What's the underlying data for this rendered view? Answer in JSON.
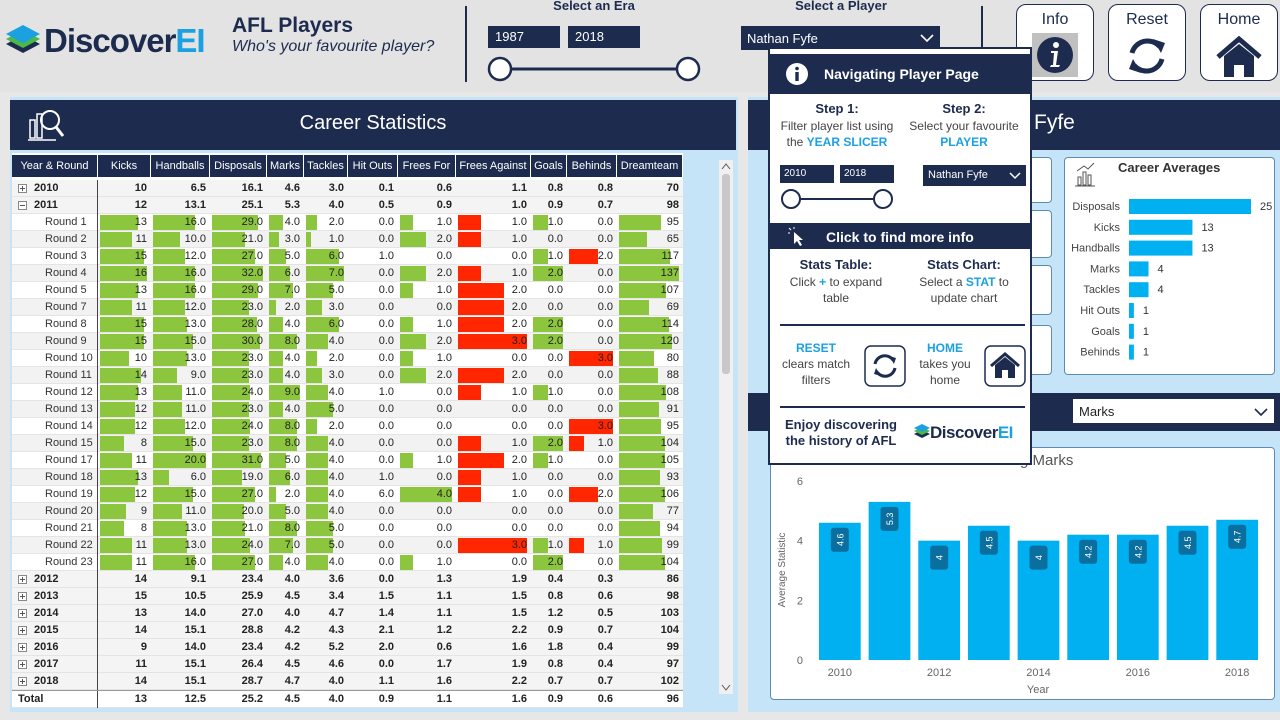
{
  "header": {
    "logo": {
      "text": "Discover",
      "accent": "EI"
    },
    "title": "AFL Players",
    "subtitle": "Who's your favourite player?",
    "era_label": "Select an Era",
    "era_start": "1987",
    "era_end": "2018",
    "player_label": "Select a Player",
    "player": "Nathan Fyfe",
    "buttons": [
      "Info",
      "Reset",
      "Home"
    ]
  },
  "table": {
    "title": "Career Statistics",
    "columns": [
      "Year & Round",
      "Kicks",
      "Handballs",
      "Disposals",
      "Marks",
      "Tackles",
      "Hit Outs",
      "Frees For",
      "Frees Against",
      "Goals",
      "Behinds",
      "Dreamteam"
    ],
    "bar_colors": [
      null,
      "#8cc63e",
      "#8cc63e",
      "#8cc63e",
      "#8cc63e",
      "#8cc63e",
      null,
      "#8cc63e",
      "#ff2600",
      "#8cc63e",
      "#ff2600",
      "#8cc63e"
    ],
    "years": [
      {
        "label": "2010",
        "values": [
          "10",
          "6.5",
          "16.1",
          "4.6",
          "3.0",
          "0.1",
          "0.6",
          "1.1",
          "0.8",
          "0.8",
          "70"
        ]
      },
      {
        "label": "2011",
        "values": [
          "12",
          "13.1",
          "25.1",
          "5.3",
          "4.0",
          "0.5",
          "0.9",
          "1.0",
          "0.9",
          "0.7",
          "98"
        ],
        "rounds": [
          {
            "label": "Round 1",
            "values": [
              "13",
              "16.0",
              "29.0",
              "4.0",
              "2.0",
              "0.0",
              "1.0",
              "1.0",
              "1.0",
              "0.0",
              "95"
            ]
          },
          {
            "label": "Round 2",
            "values": [
              "11",
              "10.0",
              "21.0",
              "3.0",
              "1.0",
              "0.0",
              "2.0",
              "1.0",
              "0.0",
              "0.0",
              "65"
            ]
          },
          {
            "label": "Round 3",
            "values": [
              "15",
              "12.0",
              "27.0",
              "5.0",
              "6.0",
              "1.0",
              "0.0",
              "0.0",
              "1.0",
              "2.0",
              "117"
            ]
          },
          {
            "label": "Round 4",
            "values": [
              "16",
              "16.0",
              "32.0",
              "6.0",
              "7.0",
              "0.0",
              "2.0",
              "1.0",
              "2.0",
              "0.0",
              "137"
            ]
          },
          {
            "label": "Round 5",
            "values": [
              "13",
              "16.0",
              "29.0",
              "7.0",
              "5.0",
              "0.0",
              "1.0",
              "2.0",
              "0.0",
              "0.0",
              "107"
            ]
          },
          {
            "label": "Round 7",
            "values": [
              "11",
              "12.0",
              "23.0",
              "2.0",
              "3.0",
              "0.0",
              "0.0",
              "2.0",
              "0.0",
              "0.0",
              "69"
            ]
          },
          {
            "label": "Round 8",
            "values": [
              "15",
              "13.0",
              "28.0",
              "4.0",
              "6.0",
              "0.0",
              "1.0",
              "2.0",
              "2.0",
              "0.0",
              "114"
            ]
          },
          {
            "label": "Round 9",
            "values": [
              "15",
              "15.0",
              "30.0",
              "8.0",
              "4.0",
              "0.0",
              "2.0",
              "3.0",
              "2.0",
              "0.0",
              "120"
            ]
          },
          {
            "label": "Round 10",
            "values": [
              "10",
              "13.0",
              "23.0",
              "4.0",
              "2.0",
              "0.0",
              "1.0",
              "0.0",
              "0.0",
              "3.0",
              "80"
            ]
          },
          {
            "label": "Round 11",
            "values": [
              "14",
              "9.0",
              "23.0",
              "4.0",
              "3.0",
              "0.0",
              "2.0",
              "2.0",
              "0.0",
              "0.0",
              "88"
            ]
          },
          {
            "label": "Round 12",
            "values": [
              "13",
              "11.0",
              "24.0",
              "9.0",
              "4.0",
              "1.0",
              "0.0",
              "1.0",
              "1.0",
              "0.0",
              "108"
            ]
          },
          {
            "label": "Round 13",
            "values": [
              "12",
              "11.0",
              "23.0",
              "4.0",
              "5.0",
              "0.0",
              "0.0",
              "0.0",
              "0.0",
              "0.0",
              "91"
            ]
          },
          {
            "label": "Round 14",
            "values": [
              "12",
              "12.0",
              "24.0",
              "8.0",
              "2.0",
              "0.0",
              "0.0",
              "0.0",
              "0.0",
              "3.0",
              "95"
            ]
          },
          {
            "label": "Round 15",
            "values": [
              "8",
              "15.0",
              "23.0",
              "8.0",
              "4.0",
              "0.0",
              "0.0",
              "1.0",
              "2.0",
              "1.0",
              "104"
            ]
          },
          {
            "label": "Round 17",
            "values": [
              "11",
              "20.0",
              "31.0",
              "5.0",
              "4.0",
              "0.0",
              "1.0",
              "2.0",
              "1.0",
              "0.0",
              "105"
            ]
          },
          {
            "label": "Round 18",
            "values": [
              "13",
              "6.0",
              "19.0",
              "6.0",
              "4.0",
              "1.0",
              "0.0",
              "1.0",
              "0.0",
              "0.0",
              "93"
            ]
          },
          {
            "label": "Round 19",
            "values": [
              "12",
              "15.0",
              "27.0",
              "2.0",
              "4.0",
              "6.0",
              "4.0",
              "1.0",
              "0.0",
              "2.0",
              "106"
            ]
          },
          {
            "label": "Round 20",
            "values": [
              "9",
              "11.0",
              "20.0",
              "5.0",
              "4.0",
              "0.0",
              "0.0",
              "0.0",
              "0.0",
              "0.0",
              "77"
            ]
          },
          {
            "label": "Round 21",
            "values": [
              "8",
              "13.0",
              "21.0",
              "8.0",
              "5.0",
              "0.0",
              "0.0",
              "0.0",
              "0.0",
              "0.0",
              "94"
            ]
          },
          {
            "label": "Round 22",
            "values": [
              "11",
              "13.0",
              "24.0",
              "7.0",
              "5.0",
              "0.0",
              "0.0",
              "3.0",
              "1.0",
              "1.0",
              "99"
            ]
          },
          {
            "label": "Round 23",
            "values": [
              "11",
              "16.0",
              "27.0",
              "4.0",
              "4.0",
              "0.0",
              "1.0",
              "0.0",
              "2.0",
              "0.0",
              "104"
            ]
          }
        ]
      },
      {
        "label": "2012",
        "values": [
          "14",
          "9.1",
          "23.4",
          "4.0",
          "3.6",
          "0.0",
          "1.3",
          "1.9",
          "0.4",
          "0.3",
          "86"
        ]
      },
      {
        "label": "2013",
        "values": [
          "15",
          "10.5",
          "25.9",
          "4.5",
          "3.4",
          "1.5",
          "1.1",
          "1.5",
          "0.8",
          "0.6",
          "98"
        ]
      },
      {
        "label": "2014",
        "values": [
          "13",
          "14.0",
          "27.0",
          "4.0",
          "4.7",
          "1.4",
          "1.1",
          "1.5",
          "1.2",
          "0.5",
          "103"
        ]
      },
      {
        "label": "2015",
        "values": [
          "14",
          "15.1",
          "28.8",
          "4.2",
          "4.3",
          "2.1",
          "1.2",
          "2.2",
          "0.9",
          "0.7",
          "104"
        ]
      },
      {
        "label": "2016",
        "values": [
          "9",
          "14.0",
          "23.4",
          "4.2",
          "5.2",
          "2.0",
          "0.6",
          "1.6",
          "1.8",
          "0.4",
          "99"
        ]
      },
      {
        "label": "2017",
        "values": [
          "11",
          "15.1",
          "26.4",
          "4.5",
          "4.6",
          "0.0",
          "1.7",
          "1.9",
          "0.8",
          "0.4",
          "97"
        ]
      },
      {
        "label": "2018",
        "values": [
          "14",
          "15.1",
          "28.7",
          "4.7",
          "4.0",
          "1.1",
          "1.6",
          "2.2",
          "0.7",
          "0.7",
          "102"
        ]
      }
    ],
    "total": {
      "label": "Total",
      "values": [
        "13",
        "12.5",
        "25.2",
        "4.5",
        "4.0",
        "0.9",
        "1.1",
        "1.6",
        "0.9",
        "0.6",
        "96"
      ]
    }
  },
  "player_title": "Fyfe",
  "stat_selector": "Marks",
  "chart_data": [
    {
      "type": "hbar",
      "title": "Career Averages",
      "categories": [
        "Disposals",
        "Kicks",
        "Handballs",
        "Marks",
        "Tackles",
        "Hit Outs",
        "Goals",
        "Behinds"
      ],
      "values": [
        25,
        13,
        13,
        4,
        4,
        1,
        1,
        1
      ],
      "color": "#00b0f0"
    },
    {
      "type": "bar",
      "title": "g Marks",
      "x": [
        2010,
        2011,
        2012,
        2013,
        2014,
        2015,
        2016,
        2017,
        2018
      ],
      "values": [
        4.6,
        5.3,
        4.0,
        4.5,
        4.0,
        4.2,
        4.2,
        4.5,
        4.7
      ],
      "xlim": [
        2009.5,
        2018.5
      ],
      "xticks": [
        2010,
        2012,
        2014,
        2016,
        2018
      ],
      "ylim": [
        0,
        6
      ],
      "yticks": [
        0,
        2,
        4,
        6
      ],
      "grid": false,
      "xlabel": "Year",
      "ylabel": "Average Statistic",
      "color": "#00b0f0"
    }
  ],
  "help": {
    "title": "Navigating Player Page",
    "step1_title": "Step 1:",
    "step1_text": "Filter player list using the",
    "step1_highlight": "YEAR SLICER",
    "step2_title": "Step 2:",
    "step2_text": "Select your favourite",
    "step2_highlight": "PLAYER",
    "slider_start": "2010",
    "slider_end": "2018",
    "player": "Nathan Fyfe",
    "banner": "Click to find more info",
    "table_title": "Stats Table:",
    "table_text1": "Click",
    "table_symbol": "+",
    "table_text2": "to expand table",
    "chart_title": "Stats Chart:",
    "chart_text1": "Select a",
    "chart_highlight": "STAT",
    "chart_text2": "to update chart",
    "reset_title": "RESET",
    "reset_text": "clears match filters",
    "home_title": "HOME",
    "home_text": "takes you home",
    "footer": "Enjoy discovering the history of AFL",
    "logo": {
      "text": "Discover",
      "accent": "EI"
    }
  }
}
